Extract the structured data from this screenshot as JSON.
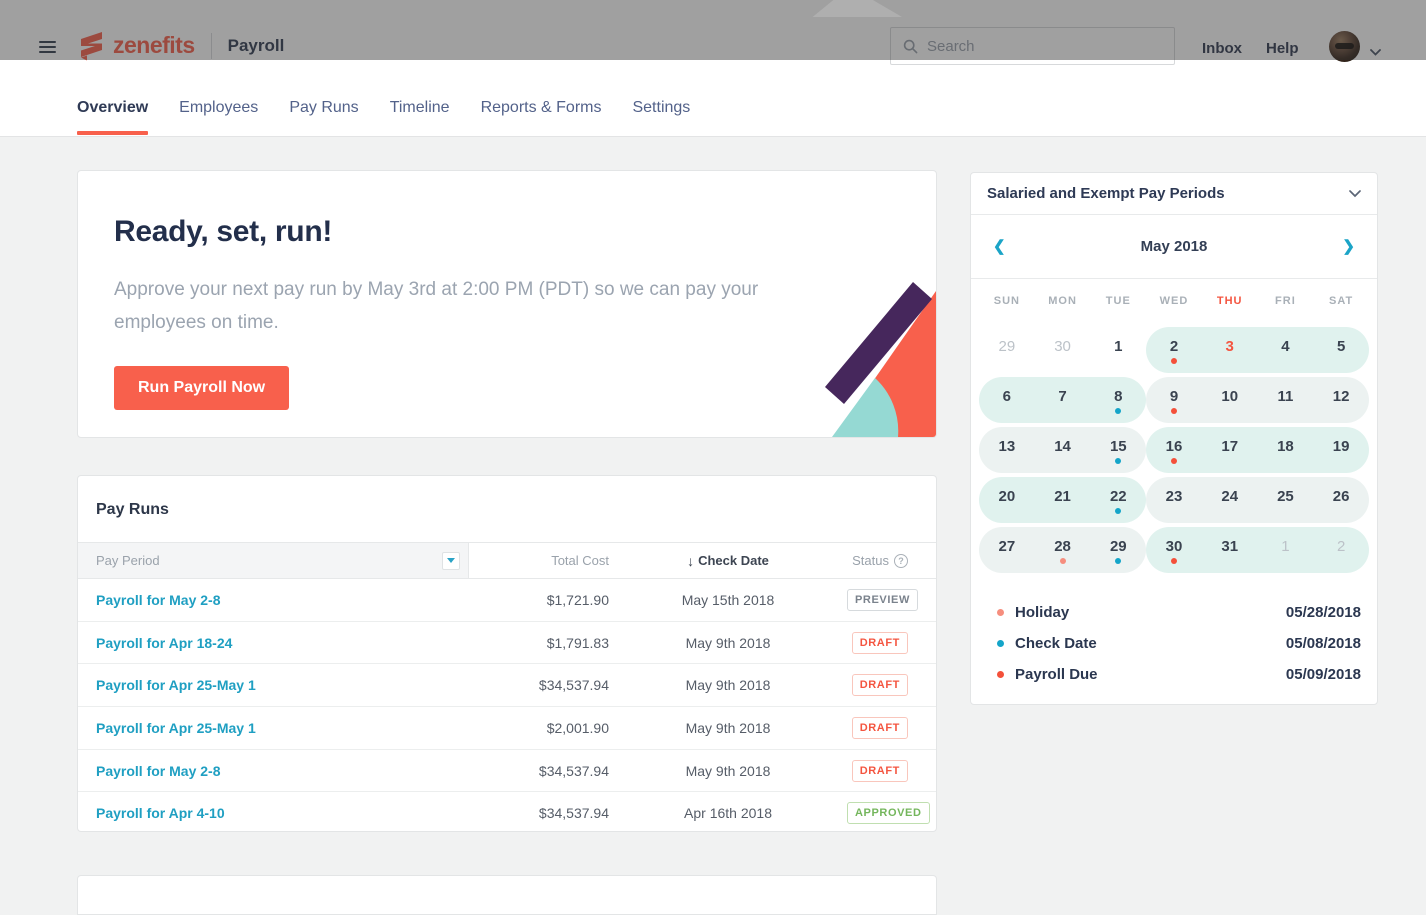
{
  "header": {
    "brand": "zenefits",
    "product": "Payroll",
    "search_placeholder": "Search",
    "links": [
      {
        "label": "Inbox"
      },
      {
        "label": "Help"
      }
    ],
    "icons": {
      "hamburger": "hamburger-icon",
      "search": "magnifier",
      "user_caret": "chevron-down",
      "brand_mark": "zenefits-z"
    }
  },
  "nav": {
    "tabs": [
      {
        "label": "Overview",
        "active": true
      },
      {
        "label": "Employees",
        "active": false
      },
      {
        "label": "Pay Runs",
        "active": false
      },
      {
        "label": "Timeline",
        "active": false
      },
      {
        "label": "Reports & Forms",
        "active": false
      },
      {
        "label": "Settings",
        "active": false
      }
    ]
  },
  "hero": {
    "title": "Ready, set, run!",
    "body": "Approve your next pay run by May 3rd at 2:00 PM (PDT) so we can pay your employees on time.",
    "cta": "Run Payroll Now"
  },
  "pay_runs": {
    "title": "Pay Runs",
    "columns": {
      "pay_period": "Pay Period",
      "total_cost": "Total Cost",
      "check_date": "Check Date",
      "status": "Status",
      "sort_icon": "↓",
      "status_help_icon": "?"
    },
    "rows": [
      {
        "pay_period": "Payroll for May 2-8",
        "total_cost": "$1,721.90",
        "check_date": "May 15th 2018",
        "status": "PREVIEW",
        "status_type": "preview"
      },
      {
        "pay_period": "Payroll for Apr 18-24",
        "total_cost": "$1,791.83",
        "check_date": "May 9th 2018",
        "status": "DRAFT",
        "status_type": "draft"
      },
      {
        "pay_period": "Payroll for Apr 25-May 1",
        "total_cost": "$34,537.94",
        "check_date": "May 9th 2018",
        "status": "DRAFT",
        "status_type": "draft"
      },
      {
        "pay_period": "Payroll for Apr 25-May 1",
        "total_cost": "$2,001.90",
        "check_date": "May 9th 2018",
        "status": "DRAFT",
        "status_type": "draft"
      },
      {
        "pay_period": "Payroll for May 2-8",
        "total_cost": "$34,537.94",
        "check_date": "May 9th 2018",
        "status": "DRAFT",
        "status_type": "draft"
      },
      {
        "pay_period": "Payroll for Apr 4-10",
        "total_cost": "$34,537.94",
        "check_date": "Apr 16th 2018",
        "status": "APPROVED",
        "status_type": "approved"
      }
    ]
  },
  "calendar": {
    "selector_label": "Salaried and Exempt Pay Periods",
    "month_label": "May 2018",
    "prev_icon": "❮",
    "next_icon": "❯",
    "weekdays": [
      "SUN",
      "MON",
      "TUE",
      "WED",
      "THU",
      "FRI",
      "SAT"
    ],
    "weekday_highlight_index": 4,
    "weeks": [
      {
        "pills": [
          {
            "start": 3,
            "end": 6,
            "tint": "a"
          }
        ],
        "days": [
          {
            "d": "29",
            "muted": true
          },
          {
            "d": "30",
            "muted": true
          },
          {
            "d": "1"
          },
          {
            "d": "2",
            "dot": "red"
          },
          {
            "d": "3",
            "today": true
          },
          {
            "d": "4"
          },
          {
            "d": "5"
          }
        ]
      },
      {
        "pills": [
          {
            "start": 0,
            "end": 2,
            "tint": "a"
          },
          {
            "start": 3,
            "end": 6,
            "tint": "b"
          }
        ],
        "days": [
          {
            "d": "6"
          },
          {
            "d": "7"
          },
          {
            "d": "8",
            "dot": "teal"
          },
          {
            "d": "9",
            "dot": "red"
          },
          {
            "d": "10"
          },
          {
            "d": "11"
          },
          {
            "d": "12"
          }
        ]
      },
      {
        "pills": [
          {
            "start": 0,
            "end": 2,
            "tint": "b"
          },
          {
            "start": 3,
            "end": 6,
            "tint": "a"
          }
        ],
        "days": [
          {
            "d": "13"
          },
          {
            "d": "14"
          },
          {
            "d": "15",
            "dot": "teal"
          },
          {
            "d": "16",
            "dot": "red"
          },
          {
            "d": "17"
          },
          {
            "d": "18"
          },
          {
            "d": "19"
          }
        ]
      },
      {
        "pills": [
          {
            "start": 0,
            "end": 2,
            "tint": "a"
          },
          {
            "start": 3,
            "end": 6,
            "tint": "b"
          }
        ],
        "days": [
          {
            "d": "20"
          },
          {
            "d": "21"
          },
          {
            "d": "22",
            "dot": "teal"
          },
          {
            "d": "23"
          },
          {
            "d": "24"
          },
          {
            "d": "25"
          },
          {
            "d": "26"
          }
        ]
      },
      {
        "pills": [
          {
            "start": 0,
            "end": 2,
            "tint": "b"
          },
          {
            "start": 3,
            "end": 6,
            "tint": "a"
          }
        ],
        "days": [
          {
            "d": "27"
          },
          {
            "d": "28",
            "dot": "salmon"
          },
          {
            "d": "29",
            "dot": "teal"
          },
          {
            "d": "30",
            "dot": "red"
          },
          {
            "d": "31"
          },
          {
            "d": "1",
            "muted": true
          },
          {
            "d": "2",
            "muted": true
          }
        ]
      }
    ],
    "legend": [
      {
        "label": "Holiday",
        "date": "05/28/2018",
        "dot": "salmon"
      },
      {
        "label": "Check Date",
        "date": "05/08/2018",
        "dot": "teal"
      },
      {
        "label": "Payroll Due",
        "date": "05/09/2018",
        "dot": "red"
      }
    ]
  },
  "colors": {
    "accent_red": "#f8604c",
    "link_teal": "#1f9fc2",
    "status_draft": "#f45540",
    "status_approved": "#74b65c",
    "dot_red": "#f4503a",
    "dot_teal": "#14a5c9",
    "dot_salmon": "#f68e7e",
    "pill_tint_a": "#e0f2ee",
    "pill_tint_b": "#ecf2f1",
    "header_dim": "rgba(47,47,47,0.46)"
  }
}
